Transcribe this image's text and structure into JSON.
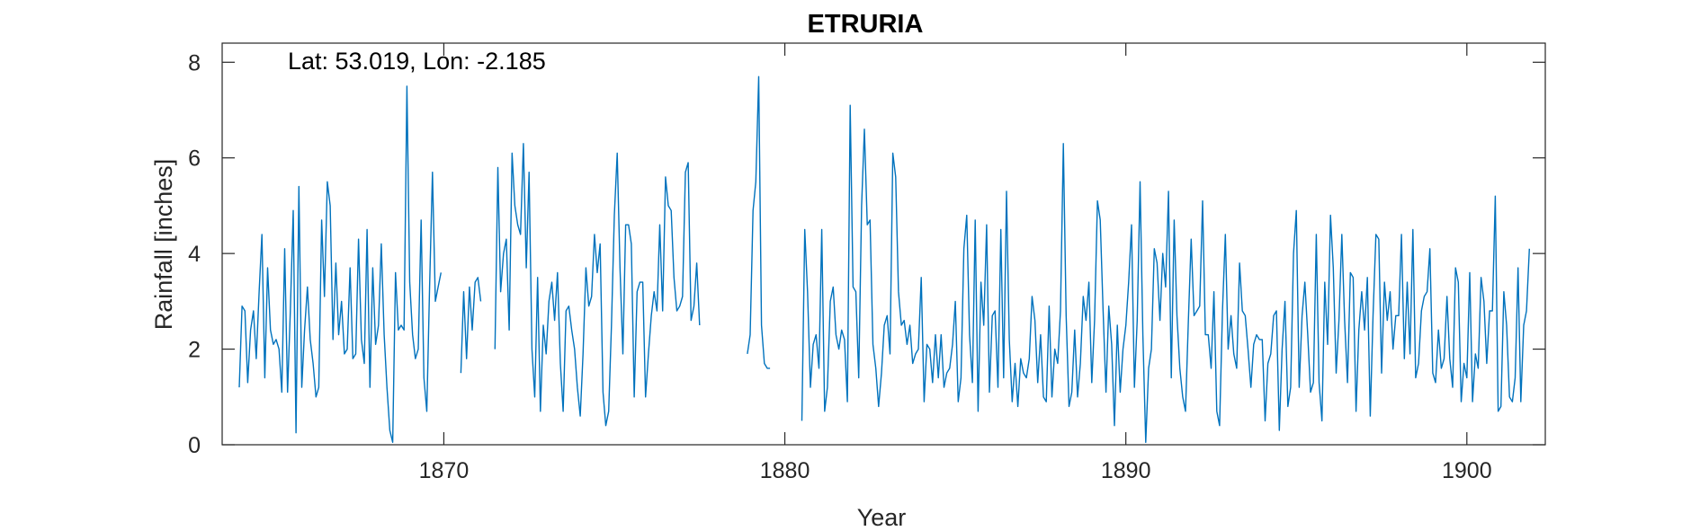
{
  "chart_data": {
    "type": "line",
    "title": "ETRURIA",
    "xlabel": "Year",
    "ylabel": "Rainfall [inches]",
    "annotation": "Lat: 53.019, Lon: -2.185",
    "xlim": [
      1863.5,
      1902.3
    ],
    "ylim": [
      0,
      8.4
    ],
    "xticks": [
      1870,
      1880,
      1890,
      1900
    ],
    "xtick_labels": [
      "1870",
      "1880",
      "1890",
      "1900"
    ],
    "yticks": [
      0,
      2,
      4,
      6,
      8
    ],
    "ytick_labels": [
      "0",
      "2",
      "4",
      "6",
      "8"
    ],
    "grid": false,
    "box": true,
    "line_color": "#0072BD",
    "series": [
      {
        "segments": [
          {
            "start": 1864.0,
            "step": 0.0833333,
            "values": [
              1.2,
              2.9,
              2.8,
              1.3,
              2.4,
              2.8,
              1.8,
              3.2,
              4.4,
              1.4,
              3.7,
              2.4,
              2.1,
              2.2,
              2.0,
              1.1,
              4.1,
              1.1,
              2.8,
              4.9,
              0.25,
              5.4,
              1.2,
              2.4,
              3.3,
              2.2,
              1.7,
              1.0,
              1.2,
              4.7,
              3.1,
              5.5,
              5.0,
              2.2,
              3.8,
              2.3,
              3.0,
              1.9,
              2.0,
              3.7,
              1.8,
              1.9,
              4.3,
              2.2,
              1.7,
              4.5,
              1.2,
              3.7,
              2.1,
              2.5,
              4.2,
              2.3,
              1.2,
              0.3,
              0.05,
              3.6,
              2.4,
              2.5,
              2.4,
              7.5,
              3.4,
              2.3,
              1.8,
              2.0,
              4.7,
              1.4,
              0.7,
              3.3,
              5.7,
              3.0,
              3.3,
              3.6
            ]
          },
          {
            "start": 1870.5,
            "step": 0.0833333,
            "values": [
              1.5,
              3.2,
              1.8,
              3.3,
              2.4,
              3.4,
              3.5,
              3.0
            ]
          },
          {
            "start": 1871.5,
            "step": 0.0833333,
            "values": [
              2.0,
              5.8,
              3.2,
              4.0,
              4.3,
              2.4,
              6.1,
              5.0,
              4.6,
              4.4,
              6.3,
              3.7,
              5.7,
              2.0,
              1.0,
              3.5,
              0.7,
              2.5,
              1.9,
              3.0,
              3.4,
              2.6,
              3.6,
              1.7,
              0.7,
              2.8,
              2.9,
              2.4,
              2.0,
              1.2,
              0.6,
              1.9,
              3.7,
              2.9,
              3.1,
              4.4,
              3.6,
              4.2,
              1.1,
              0.4,
              0.7,
              2.5,
              4.8,
              6.1,
              3.7,
              1.9,
              4.6,
              4.6,
              4.2,
              1.0,
              3.2,
              3.4,
              3.4,
              1.0,
              1.9,
              2.7,
              3.2,
              2.8,
              4.6,
              2.8,
              5.6,
              5.0,
              4.9,
              3.5,
              2.8,
              2.9,
              3.1,
              5.7,
              5.9,
              2.6,
              2.9,
              3.8,
              2.5
            ]
          },
          {
            "start": 1878.9,
            "step": 0.0833333,
            "values": [
              1.9,
              2.3,
              4.9,
              5.5,
              7.7,
              2.5,
              1.7,
              1.6,
              1.6
            ]
          },
          {
            "start": 1880.5,
            "step": 0.0833333,
            "values": [
              0.5,
              4.5,
              3.2,
              1.2,
              2.1,
              2.3,
              1.6,
              4.5,
              0.7,
              1.2,
              3.0,
              3.3,
              2.3,
              2.0,
              2.4,
              2.2,
              0.9,
              7.1,
              3.3,
              3.2,
              1.4,
              5.0,
              6.6,
              4.6,
              4.7,
              2.1,
              1.6,
              0.8,
              1.5,
              2.5,
              2.7,
              1.9,
              6.1,
              5.6,
              3.2,
              2.5,
              2.6,
              2.1,
              2.5,
              1.7,
              1.9,
              2.0,
              3.5,
              0.9,
              2.1,
              2.0,
              1.3,
              2.3,
              1.4,
              2.3,
              1.2,
              1.5,
              1.6,
              2.1,
              3.0,
              0.9,
              1.4,
              4.1,
              4.8,
              2.3,
              1.3,
              4.7,
              0.7,
              3.4,
              2.5,
              4.6,
              1.1,
              2.7,
              2.8,
              1.2,
              4.5,
              1.4,
              5.3,
              2.2,
              0.9,
              1.7,
              0.8,
              1.8,
              1.5,
              1.4,
              1.8,
              3.1,
              2.6,
              1.3,
              2.3,
              1.0,
              0.9,
              2.9,
              1.0,
              2.0,
              1.7,
              2.8,
              6.3,
              2.7,
              0.8,
              1.1,
              2.4,
              1.0,
              1.7,
              3.1,
              2.6,
              3.4,
              1.3,
              2.6,
              5.1,
              4.7,
              2.8,
              1.1,
              2.9,
              2.1,
              0.4,
              2.5,
              1.1,
              2.0,
              2.5,
              3.4,
              4.6,
              1.2,
              2.6,
              5.5,
              2.3,
              0.05,
              1.6,
              2.0,
              4.1,
              3.8,
              2.6,
              4.0,
              3.3,
              5.3,
              1.4,
              4.7,
              2.7,
              1.6,
              1.0,
              0.7,
              2.6,
              4.3,
              2.7,
              2.8,
              2.9,
              5.1,
              2.3,
              2.3,
              1.6,
              3.2,
              0.7,
              0.4,
              2.8,
              4.4,
              2.0,
              2.7,
              1.9,
              1.6,
              3.8,
              2.8,
              2.7,
              2.0,
              1.2,
              2.1,
              2.3,
              2.2,
              2.2,
              0.5,
              1.7,
              1.9,
              2.7,
              2.8,
              0.3,
              2.0,
              3.0,
              0.8,
              1.2,
              4.0,
              4.9,
              1.2,
              2.7,
              3.4,
              2.3,
              1.1,
              1.3,
              4.4,
              1.3,
              0.5,
              3.4,
              2.1,
              4.8,
              3.7,
              1.5,
              2.6,
              4.4,
              2.6,
              1.3,
              3.6,
              3.5,
              0.7,
              2.4,
              3.2,
              2.4,
              3.5,
              0.6,
              2.7,
              4.4,
              4.3,
              1.5,
              3.4,
              2.6,
              3.2,
              2.0,
              2.7,
              2.7,
              4.4,
              1.8,
              3.4,
              1.9,
              4.5,
              1.4,
              1.7,
              2.8,
              3.1,
              3.2,
              4.1,
              1.5,
              1.3,
              2.4,
              1.6,
              1.8,
              3.1,
              1.8,
              1.2,
              3.7,
              3.4,
              0.9,
              1.7,
              1.4,
              3.6,
              0.9,
              1.9,
              1.6,
              3.5,
              3.0,
              1.7,
              2.8,
              2.8,
              5.2,
              0.7,
              0.8,
              3.2,
              2.5,
              1.0,
              0.9,
              1.4,
              3.7,
              0.9,
              2.5,
              2.8,
              4.1
            ]
          }
        ]
      }
    ]
  }
}
